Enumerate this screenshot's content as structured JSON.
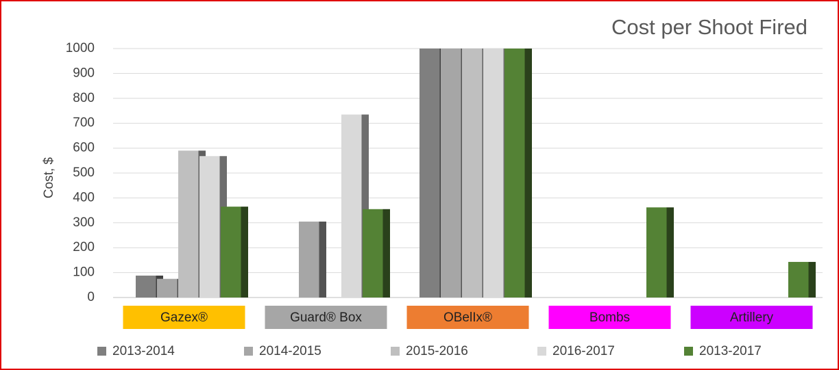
{
  "chart_data": {
    "type": "bar",
    "title": "Cost per Shoot Fired",
    "y_label": "Cost, $",
    "categories": [
      "Gazex®",
      "Guard® Box",
      "OBelIx®",
      "Bombs",
      "Artillery"
    ],
    "category_colors": [
      "#ffc000",
      "#a6a6a6",
      "#ed7d31",
      "#ff00ff",
      "#cc00ff"
    ],
    "series": [
      {
        "name": "2013-2014",
        "color": "#7f7f7f",
        "values": [
          88,
          null,
          1000,
          null,
          null
        ]
      },
      {
        "name": "2014-2015",
        "color": "#a6a6a6",
        "values": [
          75,
          305,
          1000,
          null,
          null
        ]
      },
      {
        "name": "2015-2016",
        "color": "#bfbfbf",
        "values": [
          590,
          null,
          1000,
          null,
          null
        ]
      },
      {
        "name": "2016-2017",
        "color": "#d9d9d9",
        "values": [
          568,
          735,
          1000,
          null,
          null
        ]
      },
      {
        "name": "2013-2017",
        "color": "#548235",
        "values": [
          365,
          355,
          1000,
          362,
          143
        ]
      }
    ],
    "ylim": [
      0,
      1000
    ],
    "yticks": [
      0,
      100,
      200,
      300,
      400,
      500,
      600,
      700,
      800,
      900,
      1000
    ],
    "grid": true
  }
}
